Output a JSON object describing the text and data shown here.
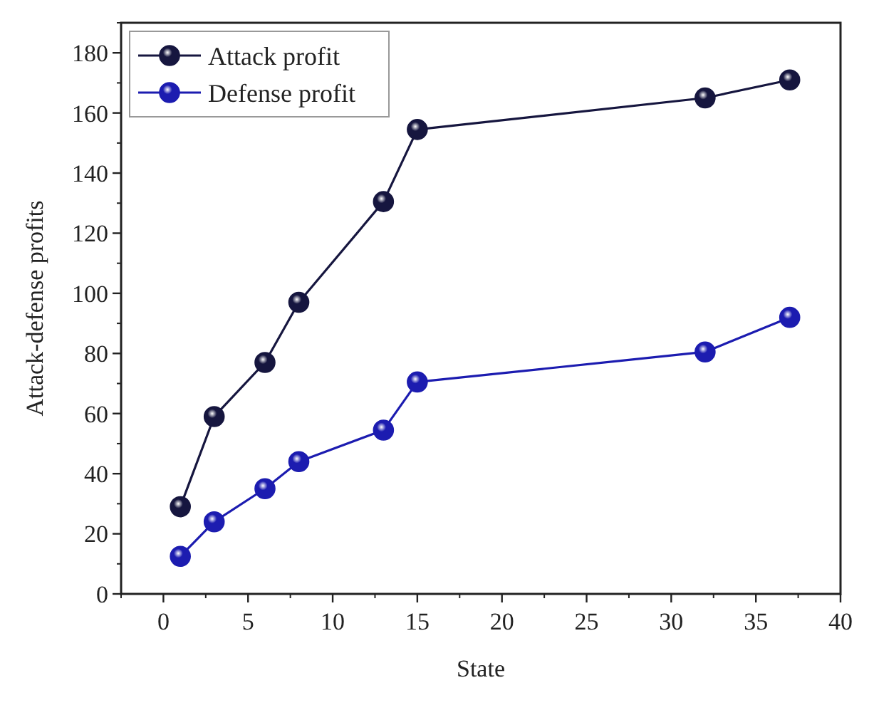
{
  "chart_data": {
    "type": "line",
    "xlabel": "State",
    "ylabel": "Attack-defense profits",
    "x": [
      1,
      3,
      6,
      8,
      13,
      15,
      32,
      37
    ],
    "series": [
      {
        "name": "Attack profit",
        "color": "#16163f",
        "values": [
          29,
          59,
          77,
          97,
          130.5,
          154.5,
          165,
          171
        ]
      },
      {
        "name": "Defense profit",
        "color": "#1c1cb0",
        "values": [
          12.5,
          24,
          35,
          44,
          54.5,
          70.5,
          80.5,
          92
        ]
      }
    ],
    "xlim": [
      -2.5,
      40
    ],
    "xticks": [
      0,
      5,
      10,
      15,
      20,
      25,
      30,
      35,
      40
    ],
    "ylim": [
      0,
      190
    ],
    "yticks": [
      0,
      20,
      40,
      60,
      80,
      100,
      120,
      140,
      160,
      180
    ],
    "grid": false,
    "legend": "top left",
    "marker": "circle",
    "line_style": "solid"
  }
}
